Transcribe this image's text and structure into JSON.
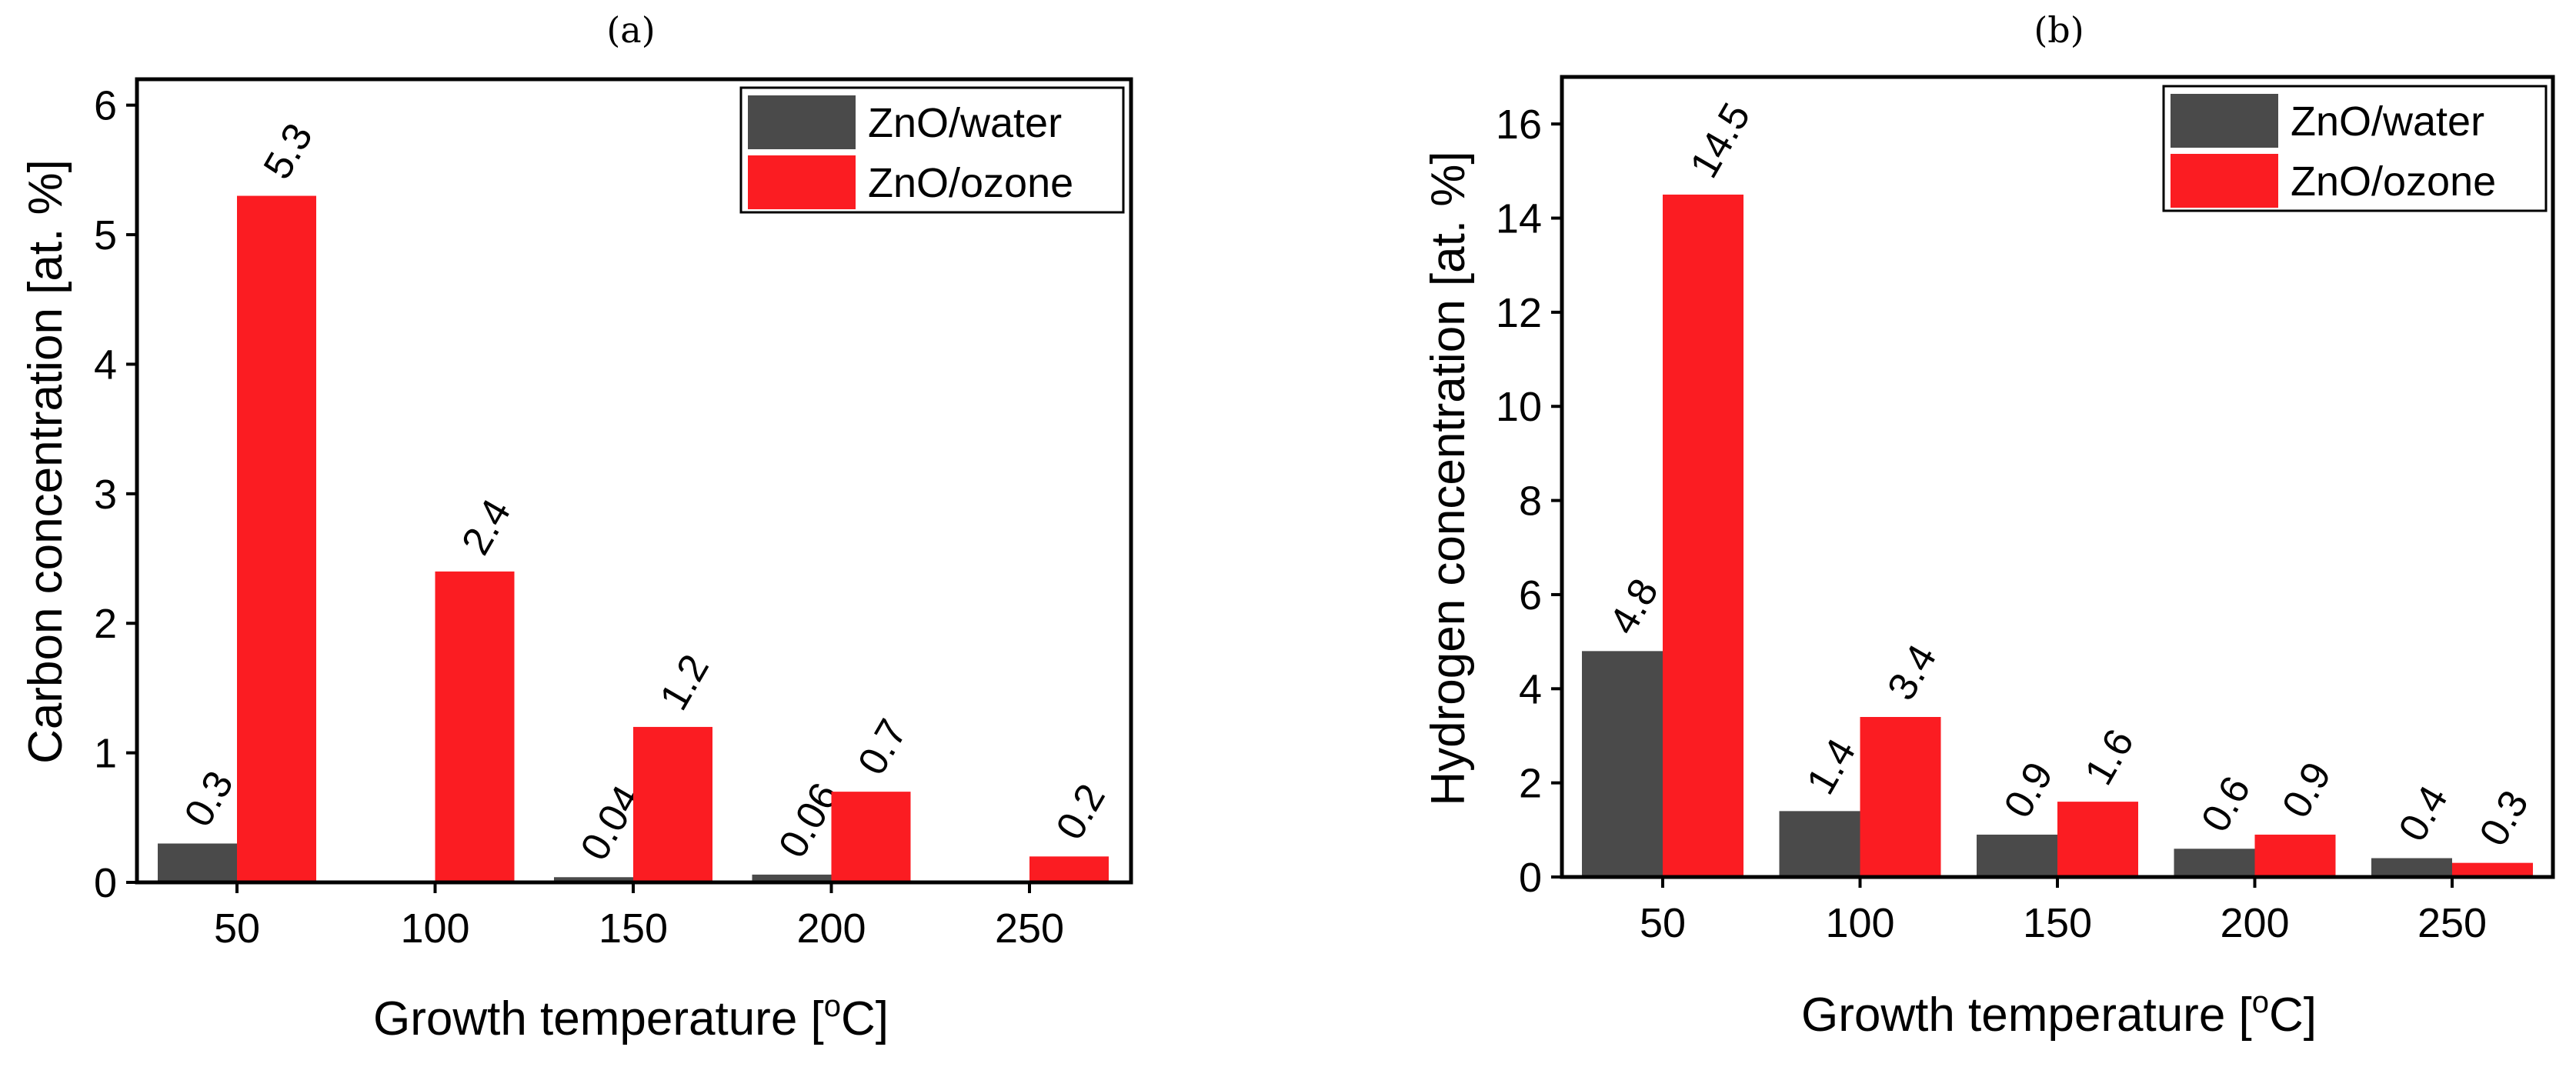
{
  "colors": {
    "water": "#4a4a4a",
    "ozone": "#fb1c22"
  },
  "chart_data": [
    {
      "type": "bar",
      "panel": "(a)",
      "categories": [
        "50",
        "100",
        "150",
        "200",
        "250"
      ],
      "series": [
        {
          "name": "ZnO/water",
          "values": [
            0.3,
            0,
            0.04,
            0.06,
            0
          ],
          "labels": [
            "0.3",
            "",
            "0.04",
            "0.06",
            ""
          ]
        },
        {
          "name": "ZnO/ozone",
          "values": [
            5.3,
            2.4,
            1.2,
            0.7,
            0.2
          ],
          "labels": [
            "5.3",
            "2.4",
            "1.2",
            "0.7",
            "0.2"
          ]
        }
      ],
      "xlabel_main": "Growth temperature [",
      "xlabel_sup": "o",
      "xlabel_end": "C]",
      "ylabel": "Carbon concentration [at. %]",
      "ylim": [
        0,
        6.2
      ],
      "yticks": [
        "0",
        "1",
        "2",
        "3",
        "4",
        "5",
        "6"
      ],
      "ytick_values": [
        0,
        1,
        2,
        3,
        4,
        5,
        6
      ],
      "legend": {
        "position": "top-right",
        "entries": [
          "ZnO/water",
          "ZnO/ozone"
        ]
      }
    },
    {
      "type": "bar",
      "panel": "(b)",
      "categories": [
        "50",
        "100",
        "150",
        "200",
        "250"
      ],
      "series": [
        {
          "name": "ZnO/water",
          "values": [
            4.8,
            1.4,
            0.9,
            0.6,
            0.4
          ],
          "labels": [
            "4.8",
            "1.4",
            "0.9",
            "0.6",
            "0.4"
          ]
        },
        {
          "name": "ZnO/ozone",
          "values": [
            14.5,
            3.4,
            1.6,
            0.9,
            0.3
          ],
          "labels": [
            "14.5",
            "3.4",
            "1.6",
            "0.9",
            "0.3"
          ]
        }
      ],
      "xlabel_main": "Growth temperature [",
      "xlabel_sup": "o",
      "xlabel_end": "C]",
      "ylabel": "Hydrogen concentration [at. %]",
      "ylim": [
        0,
        17
      ],
      "yticks": [
        "0",
        "2",
        "4",
        "6",
        "8",
        "10",
        "12",
        "14",
        "16"
      ],
      "ytick_values": [
        0,
        2,
        4,
        6,
        8,
        10,
        12,
        14,
        16
      ],
      "legend": {
        "position": "top-right",
        "entries": [
          "ZnO/water",
          "ZnO/ozone"
        ]
      }
    }
  ]
}
